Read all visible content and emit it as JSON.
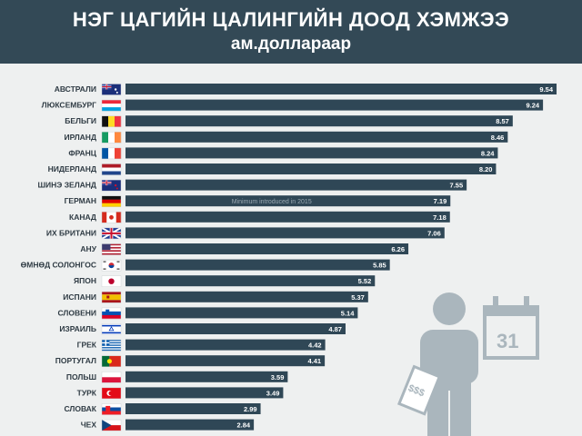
{
  "header": {
    "title": "НЭГ ЦАГИЙН ЦАЛИНГИЙН ДООД ХЭМЖЭЭ",
    "subtitle": "ам.доллараар"
  },
  "chart_data": {
    "type": "bar",
    "orientation": "horizontal",
    "title": "НЭГ ЦАГИЙН ЦАЛИНГИЙН ДООД ХЭМЖЭЭ",
    "subtitle": "ам.доллараар",
    "categories": [
      "АВСТРАЛИ",
      "ЛЮКСЕМБУРГ",
      "БЕЛЬГИ",
      "ИРЛАНД",
      "ФРАНЦ",
      "НИДЕРЛАНД",
      "ШИНЭ ЗЕЛАНД",
      "ГЕРМАН",
      "КАНАД",
      "ИХ БРИТАНИ",
      "АНУ",
      "ӨМНӨД СОЛОНГОС",
      "ЯПОН",
      "ИСПАНИ",
      "СЛОВЕНИ",
      "ИЗРАИЛЬ",
      "ГРЕК",
      "ПОРТУГАЛ",
      "ПОЛЬШ",
      "ТУРК",
      "СЛОВАК",
      "ЧЕХ"
    ],
    "values": [
      9.54,
      9.24,
      8.57,
      8.46,
      8.24,
      8.2,
      7.55,
      7.19,
      7.18,
      7.06,
      6.26,
      5.85,
      5.52,
      5.37,
      5.14,
      4.87,
      4.42,
      4.41,
      3.59,
      3.49,
      2.99,
      2.84
    ],
    "value_labels": [
      "9.54",
      "9.24",
      "8.57",
      "8.46",
      "8.24",
      "8.20",
      "7.55",
      "7.19",
      "7.18",
      "7.06",
      "6.26",
      "5.85",
      "5.52",
      "5.37",
      "5.14",
      "4.87",
      "4.42",
      "4.41",
      "3.59",
      "3.49",
      "2.99",
      "2.84"
    ],
    "flags": [
      "australia",
      "luxembourg",
      "belgium",
      "ireland",
      "france",
      "netherlands",
      "new-zealand",
      "germany",
      "canada",
      "united-kingdom",
      "usa",
      "south-korea",
      "japan",
      "spain",
      "slovenia",
      "israel",
      "greece",
      "portugal",
      "poland",
      "turkey",
      "slovakia",
      "czechia"
    ],
    "annotations": [
      {
        "category": "ГЕРМАН",
        "text": "Minimum introduced in 2015"
      }
    ],
    "xlim": [
      0,
      9.6
    ],
    "grid": false,
    "legend": "none",
    "bar_color": "#2f4756"
  },
  "illustration": {
    "calendar_day": "31",
    "money_text": "$$$"
  }
}
